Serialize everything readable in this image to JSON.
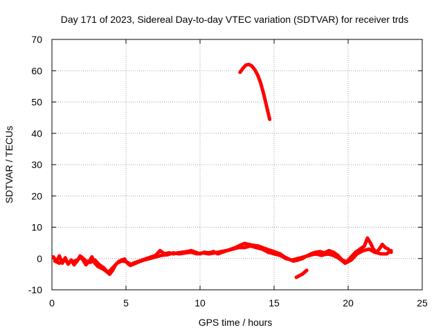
{
  "chart_data": {
    "type": "scatter",
    "title": "Day 171 of 2023, Sidereal Day-to-day VTEC variation (SDTVAR) for receiver trds",
    "xlabel": "GPS time / hours",
    "ylabel": "SDTVAR / TECUs",
    "xlim": [
      0,
      25
    ],
    "ylim": [
      -10,
      70
    ],
    "xticks": [
      "0",
      "5",
      "10",
      "15",
      "20",
      "25"
    ],
    "yticks": [
      "-10",
      "0",
      "10",
      "20",
      "30",
      "40",
      "50",
      "60",
      "70"
    ],
    "grid": true,
    "series": [
      {
        "name": "SDTVAR",
        "color": "#ff0000",
        "segments": [
          [
            [
              0.1,
              0.5
            ],
            [
              0.3,
              -1.0
            ],
            [
              0.5,
              0.8
            ],
            [
              0.7,
              -1.5
            ],
            [
              0.9,
              0.2
            ],
            [
              1.1,
              -1.8
            ],
            [
              1.3,
              -0.5
            ],
            [
              1.5,
              -2.0
            ],
            [
              1.7,
              -0.8
            ],
            [
              1.9,
              0.8
            ],
            [
              2.1,
              -0.5
            ],
            [
              2.3,
              -2.0
            ],
            [
              2.5,
              -1.0
            ],
            [
              2.7,
              0.5
            ],
            [
              2.9,
              -1.5
            ],
            [
              3.1,
              -2.5
            ],
            [
              3.3,
              -3.0
            ],
            [
              3.5,
              -3.5
            ],
            [
              3.7,
              -4.2
            ],
            [
              3.9,
              -5.0
            ],
            [
              4.1,
              -3.8
            ],
            [
              4.3,
              -2.0
            ],
            [
              4.5,
              -1.0
            ],
            [
              4.7,
              -0.5
            ],
            [
              4.9,
              -0.2
            ],
            [
              5.1,
              -1.5
            ],
            [
              5.3,
              -2.2
            ],
            [
              5.5,
              -1.5
            ],
            [
              5.8,
              -1.0
            ],
            [
              6.1,
              -0.5
            ],
            [
              6.4,
              0.0
            ],
            [
              6.7,
              0.5
            ],
            [
              7.0,
              1.0
            ],
            [
              7.3,
              2.5
            ],
            [
              7.6,
              1.5
            ],
            [
              7.9,
              1.8
            ],
            [
              8.2,
              1.5
            ],
            [
              8.5,
              1.8
            ],
            [
              8.8,
              2.0
            ],
            [
              9.1,
              2.2
            ],
            [
              9.4,
              2.5
            ],
            [
              9.7,
              2.0
            ],
            [
              10.0,
              1.5
            ],
            [
              10.3,
              2.0
            ],
            [
              10.6,
              1.8
            ],
            [
              10.9,
              2.2
            ],
            [
              11.2,
              1.5
            ],
            [
              11.5,
              2.0
            ],
            [
              11.8,
              2.5
            ],
            [
              12.1,
              3.0
            ],
            [
              12.4,
              3.5
            ],
            [
              12.7,
              4.2
            ],
            [
              13.0,
              4.8
            ],
            [
              13.3,
              4.5
            ],
            [
              13.6,
              4.2
            ],
            [
              13.9,
              4.0
            ],
            [
              14.2,
              3.5
            ],
            [
              14.5,
              3.0
            ],
            [
              14.8,
              2.5
            ],
            [
              15.1,
              2.0
            ],
            [
              15.4,
              1.5
            ],
            [
              15.7,
              0.5
            ],
            [
              16.0,
              -0.2
            ],
            [
              16.3,
              -0.8
            ],
            [
              16.6,
              -0.5
            ],
            [
              16.9,
              0.0
            ],
            [
              17.2,
              0.8
            ],
            [
              17.5,
              1.5
            ],
            [
              17.8,
              2.0
            ],
            [
              18.1,
              2.2
            ],
            [
              18.4,
              1.8
            ],
            [
              18.7,
              2.5
            ],
            [
              19.0,
              2.0
            ],
            [
              19.3,
              1.0
            ],
            [
              19.6,
              -0.5
            ],
            [
              19.9,
              -1.0
            ],
            [
              20.2,
              0.5
            ],
            [
              20.5,
              2.0
            ],
            [
              20.8,
              3.0
            ],
            [
              21.1,
              4.0
            ],
            [
              21.3,
              6.5
            ],
            [
              21.5,
              5.0
            ],
            [
              21.7,
              3.0
            ],
            [
              21.9,
              2.0
            ],
            [
              22.1,
              3.0
            ],
            [
              22.3,
              4.5
            ],
            [
              22.5,
              3.5
            ],
            [
              22.7,
              3.0
            ],
            [
              22.9,
              2.0
            ]
          ],
          [
            [
              0.2,
              -0.8
            ],
            [
              0.5,
              -1.5
            ],
            [
              0.8,
              -0.5
            ],
            [
              1.1,
              -1.2
            ],
            [
              1.4,
              -1.0
            ],
            [
              1.7,
              -0.5
            ],
            [
              2.0,
              0.5
            ],
            [
              2.3,
              -0.8
            ],
            [
              2.6,
              -1.2
            ],
            [
              2.9,
              -0.5
            ],
            [
              3.2,
              -2.0
            ],
            [
              3.5,
              -3.0
            ],
            [
              3.8,
              -4.5
            ],
            [
              4.1,
              -3.0
            ],
            [
              4.4,
              -1.5
            ],
            [
              4.7,
              -0.8
            ],
            [
              5.0,
              -1.0
            ],
            [
              5.4,
              -2.0
            ],
            [
              5.8,
              -1.2
            ],
            [
              6.2,
              -0.5
            ],
            [
              6.6,
              0.0
            ],
            [
              7.0,
              0.5
            ],
            [
              7.4,
              1.0
            ],
            [
              7.8,
              1.2
            ],
            [
              8.2,
              1.8
            ],
            [
              8.6,
              1.5
            ],
            [
              9.0,
              1.8
            ],
            [
              9.4,
              2.0
            ],
            [
              9.8,
              1.5
            ],
            [
              10.2,
              1.8
            ],
            [
              10.6,
              1.5
            ],
            [
              11.0,
              1.8
            ],
            [
              11.4,
              2.2
            ],
            [
              11.8,
              2.5
            ],
            [
              12.2,
              3.0
            ],
            [
              12.6,
              3.5
            ],
            [
              13.0,
              3.5
            ],
            [
              13.4,
              4.0
            ],
            [
              13.8,
              3.5
            ],
            [
              14.2,
              3.0
            ],
            [
              14.6,
              2.0
            ],
            [
              15.0,
              1.5
            ],
            [
              15.4,
              1.0
            ],
            [
              15.8,
              0.0
            ],
            [
              16.2,
              -0.5
            ],
            [
              16.6,
              0.0
            ],
            [
              17.0,
              0.5
            ],
            [
              17.4,
              1.0
            ],
            [
              17.8,
              1.5
            ],
            [
              18.2,
              1.0
            ],
            [
              18.6,
              1.5
            ],
            [
              19.0,
              1.0
            ],
            [
              19.4,
              0.0
            ],
            [
              19.8,
              -1.5
            ],
            [
              20.2,
              -0.5
            ],
            [
              20.6,
              1.5
            ],
            [
              21.0,
              2.5
            ],
            [
              21.4,
              3.0
            ],
            [
              21.8,
              2.0
            ],
            [
              22.2,
              1.5
            ],
            [
              22.6,
              1.5
            ],
            [
              22.9,
              2.5
            ]
          ],
          [
            [
              12.7,
              59.5
            ],
            [
              12.9,
              60.8
            ],
            [
              13.1,
              61.8
            ],
            [
              13.3,
              62.0
            ],
            [
              13.5,
              61.5
            ],
            [
              13.7,
              60.3
            ],
            [
              13.9,
              58.5
            ],
            [
              14.1,
              56.0
            ],
            [
              14.3,
              52.5
            ],
            [
              14.5,
              48.5
            ],
            [
              14.7,
              44.5
            ]
          ],
          [
            [
              16.5,
              -6.0
            ],
            [
              16.7,
              -5.5
            ],
            [
              16.9,
              -5.0
            ],
            [
              17.1,
              -4.2
            ],
            [
              17.2,
              -3.8
            ]
          ]
        ]
      }
    ]
  }
}
